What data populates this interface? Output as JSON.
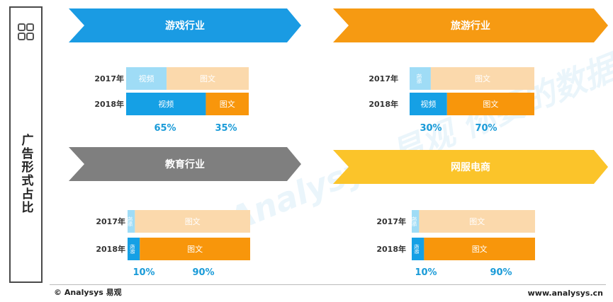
{
  "side_title": "广告形式占比",
  "watermark": "Analysys 易观 你要的数据分析",
  "footer": {
    "left": "© Analysys 易观",
    "right": "www.analysys.cn"
  },
  "colors": {
    "video_light": "#9fdcf6",
    "text_light": "#fbd9ac",
    "video_dark": "#15a0e5",
    "text_dark": "#f8960b",
    "pct": "#1a9bd8"
  },
  "chart_data": {
    "type": "bar",
    "stacked": true,
    "orientation": "horizontal",
    "segment_labels": [
      "视频",
      "图文"
    ],
    "panels": [
      {
        "title": "游戏行业",
        "banner_color": "#1a9be3",
        "categories": [
          "2017年",
          "2018年"
        ],
        "values": {
          "2017年": [
            33,
            67
          ],
          "2018年": [
            65,
            35
          ]
        },
        "pct_labels": [
          "65%",
          "35%"
        ]
      },
      {
        "title": "旅游行业",
        "banner_color": "#f69a12",
        "categories": [
          "2017年",
          "2018年"
        ],
        "values": {
          "2017年": [
            17,
            83
          ],
          "2018年": [
            30,
            70
          ]
        },
        "pct_labels": [
          "30%",
          "70%"
        ]
      },
      {
        "title": "教育行业",
        "banner_color": "#7f7f7f",
        "categories": [
          "2017年",
          "2018年"
        ],
        "values": {
          "2017年": [
            6,
            94
          ],
          "2018年": [
            10,
            90
          ]
        },
        "pct_labels": [
          "10%",
          "90%"
        ]
      },
      {
        "title": "网服电商",
        "banner_color": "#fbc42a",
        "categories": [
          "2017年",
          "2018年"
        ],
        "values": {
          "2017年": [
            6,
            94
          ],
          "2018年": [
            10,
            90
          ]
        },
        "pct_labels": [
          "10%",
          "90%"
        ]
      }
    ]
  }
}
